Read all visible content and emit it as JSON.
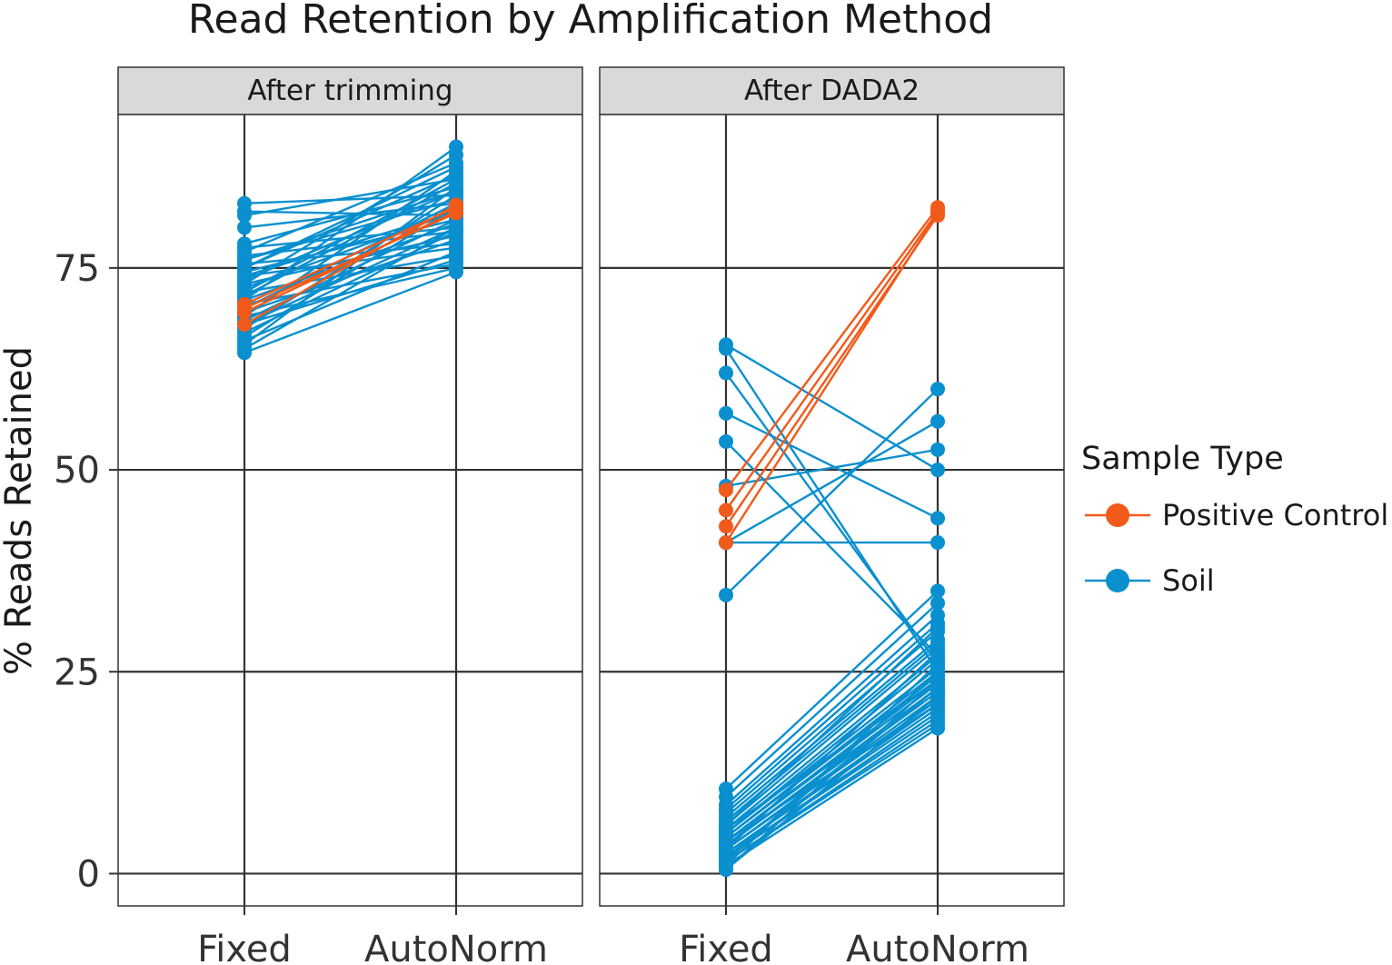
{
  "chart_data": {
    "type": "line",
    "title": "Read Retention by Amplification Method",
    "ylabel": "% Reads Retained",
    "xlabel": "",
    "categories": [
      "Fixed",
      "AutoNorm"
    ],
    "ylim": [
      -4,
      94
    ],
    "yticks": [
      0,
      25,
      50,
      75
    ],
    "ytick_labels": [
      "0",
      "25",
      "50",
      "75"
    ],
    "grid": true,
    "legend": {
      "title": "Sample Type",
      "placement": "right",
      "entries": [
        {
          "name": "Positive Control",
          "color": "#F15A1A"
        },
        {
          "name": "Soil",
          "color": "#0A8FCF"
        }
      ]
    },
    "panels": [
      {
        "label": "After trimming",
        "series": [
          {
            "group": "Positive Control",
            "pairs": [
              [
                70.5,
                82.5
              ],
              [
                69.5,
                82.0
              ],
              [
                68.0,
                82.8
              ],
              [
                70.0,
                81.8
              ]
            ]
          },
          {
            "group": "Soil",
            "pairs": [
              [
                83.0,
                84.0
              ],
              [
                82.0,
                81.5
              ],
              [
                81.5,
                86.0
              ],
              [
                80.0,
                83.0
              ],
              [
                78.0,
                85.0
              ],
              [
                77.5,
                80.0
              ],
              [
                77.0,
                88.0
              ],
              [
                76.5,
                79.5
              ],
              [
                76.0,
                83.5
              ],
              [
                75.5,
                78.0
              ],
              [
                75.0,
                86.5
              ],
              [
                74.5,
                81.0
              ],
              [
                74.0,
                77.5
              ],
              [
                73.5,
                84.5
              ],
              [
                73.0,
                79.0
              ],
              [
                72.5,
                82.0
              ],
              [
                72.0,
                76.5
              ],
              [
                71.5,
                85.5
              ],
              [
                71.0,
                80.5
              ],
              [
                70.5,
                75.5
              ],
              [
                70.0,
                83.0
              ],
              [
                69.5,
                78.5
              ],
              [
                69.0,
                87.0
              ],
              [
                68.5,
                81.0
              ],
              [
                68.0,
                76.0
              ],
              [
                67.5,
                84.0
              ],
              [
                67.0,
                79.5
              ],
              [
                66.5,
                82.5
              ],
              [
                66.0,
                77.0
              ],
              [
                65.5,
                85.0
              ],
              [
                65.0,
                80.0
              ],
              [
                64.5,
                74.5
              ],
              [
                71.0,
                90.0
              ],
              [
                73.0,
                89.0
              ],
              [
                75.0,
                87.5
              ],
              [
                69.0,
                75.0
              ],
              [
                72.0,
                86.0
              ],
              [
                74.0,
                82.0
              ],
              [
                76.0,
                84.5
              ],
              [
                68.0,
                80.0
              ]
            ]
          }
        ]
      },
      {
        "label": "After DADA2",
        "series": [
          {
            "group": "Positive Control",
            "pairs": [
              [
                47.5,
                82.5
              ],
              [
                45.0,
                82.0
              ],
              [
                43.0,
                81.5
              ],
              [
                41.0,
                81.8
              ]
            ]
          },
          {
            "group": "Soil",
            "pairs": [
              [
                65.5,
                50.0
              ],
              [
                65.0,
                25.0
              ],
              [
                62.0,
                26.0
              ],
              [
                57.0,
                44.0
              ],
              [
                53.5,
                27.0
              ],
              [
                48.0,
                52.5
              ],
              [
                41.0,
                56.0
              ],
              [
                41.0,
                41.0
              ],
              [
                34.5,
                60.0
              ],
              [
                10.5,
                35.0
              ],
              [
                9.5,
                33.5
              ],
              [
                8.5,
                32.0
              ],
              [
                8.0,
                31.0
              ],
              [
                7.5,
                30.0
              ],
              [
                7.0,
                29.0
              ],
              [
                6.5,
                28.5
              ],
              [
                6.0,
                28.0
              ],
              [
                5.5,
                27.0
              ],
              [
                5.0,
                26.5
              ],
              [
                5.0,
                25.5
              ],
              [
                4.5,
                25.0
              ],
              [
                4.5,
                24.5
              ],
              [
                4.0,
                24.0
              ],
              [
                4.0,
                23.5
              ],
              [
                3.5,
                23.0
              ],
              [
                3.5,
                22.5
              ],
              [
                3.0,
                22.0
              ],
              [
                3.0,
                21.5
              ],
              [
                2.5,
                21.0
              ],
              [
                2.5,
                20.5
              ],
              [
                2.0,
                20.0
              ],
              [
                2.0,
                19.5
              ],
              [
                1.5,
                19.0
              ],
              [
                1.5,
                18.5
              ],
              [
                1.0,
                18.0
              ],
              [
                1.0,
                26.0
              ],
              [
                0.5,
                24.0
              ],
              [
                0.5,
                22.0
              ],
              [
                6.0,
                30.5
              ],
              [
                3.0,
                27.5
              ],
              [
                2.0,
                23.0
              ],
              [
                4.0,
                21.0
              ],
              [
                1.5,
                25.0
              ],
              [
                5.5,
                24.0
              ]
            ]
          }
        ]
      }
    ]
  }
}
